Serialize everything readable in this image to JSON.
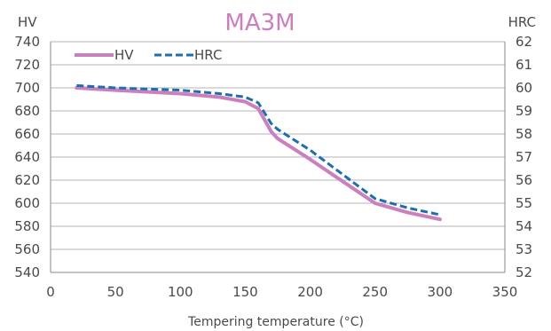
{
  "chart_data": {
    "type": "line",
    "title": "MA3M",
    "xlabel": "Tempering temperature (°C)",
    "ylabel_left": "HV",
    "ylabel_right": "HRC",
    "xlim": [
      0,
      350
    ],
    "ylim_left": [
      540,
      740
    ],
    "ylim_right": [
      52,
      62
    ],
    "x_ticks": [
      "0",
      "50",
      "100",
      "150",
      "200",
      "250",
      "300",
      "350"
    ],
    "y_left_ticks": [
      "540",
      "560",
      "580",
      "600",
      "620",
      "640",
      "660",
      "680",
      "700",
      "720",
      "740"
    ],
    "y_right_ticks": [
      "52",
      "53",
      "54",
      "55",
      "56",
      "57",
      "58",
      "59",
      "60",
      "61",
      "62"
    ],
    "grid": "horizontal",
    "legend_position": "top-left",
    "series": [
      {
        "name": "HV",
        "axis": "left",
        "color": "#cc7fbf",
        "style": "solid",
        "x": [
          20,
          50,
          100,
          130,
          150,
          160,
          165,
          170,
          175,
          200,
          225,
          250,
          275,
          300
        ],
        "y": [
          700,
          698,
          695,
          692,
          688,
          682,
          672,
          662,
          656,
          638,
          619,
          600,
          592,
          586
        ]
      },
      {
        "name": "HRC",
        "axis": "right",
        "color": "#1b6fae",
        "style": "dashed",
        "x": [
          20,
          50,
          100,
          130,
          150,
          160,
          165,
          170,
          175,
          200,
          225,
          250,
          275,
          300
        ],
        "y": [
          60.1,
          60.0,
          59.9,
          59.75,
          59.6,
          59.35,
          58.9,
          58.45,
          58.2,
          57.3,
          56.25,
          55.2,
          54.8,
          54.5
        ]
      }
    ]
  }
}
